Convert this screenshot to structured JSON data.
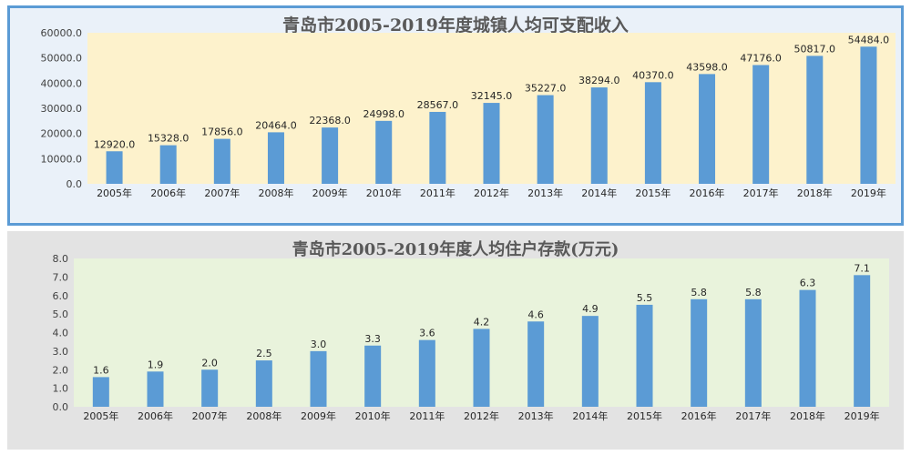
{
  "chart_data": [
    {
      "type": "bar",
      "title": "青岛市2005-2019年度城镇人均可支配收入",
      "categories": [
        "2005年",
        "2006年",
        "2007年",
        "2008年",
        "2009年",
        "2010年",
        "2011年",
        "2012年",
        "2013年",
        "2014年",
        "2015年",
        "2016年",
        "2017年",
        "2018年",
        "2019年"
      ],
      "values": [
        12920.0,
        15328.0,
        17856.0,
        20464.0,
        22368.0,
        24998.0,
        28567.0,
        32145.0,
        35227.0,
        38294.0,
        40370.0,
        43598.0,
        47176.0,
        50817.0,
        54484.0
      ],
      "data_labels": [
        "12920.0",
        "15328.0",
        "17856.0",
        "20464.0",
        "22368.0",
        "24998.0",
        "28567.0",
        "32145.0",
        "35227.0",
        "38294.0",
        "40370.0",
        "43598.0",
        "47176.0",
        "50817.0",
        "54484.0"
      ],
      "y_ticks": [
        "0.0",
        "10000.0",
        "20000.0",
        "30000.0",
        "40000.0",
        "50000.0",
        "60000.0"
      ],
      "ylim": [
        0,
        60000
      ],
      "bar_color": "#5b9bd5",
      "plot_background": "#fdf2cc",
      "grid": false,
      "legend": "none"
    },
    {
      "type": "bar",
      "title": "青岛市2005-2019年度人均住户存款(万元)",
      "categories": [
        "2005年",
        "2006年",
        "2007年",
        "2008年",
        "2009年",
        "2010年",
        "2011年",
        "2012年",
        "2013年",
        "2014年",
        "2015年",
        "2016年",
        "2017年",
        "2018年",
        "2019年"
      ],
      "values": [
        1.6,
        1.9,
        2.0,
        2.5,
        3.0,
        3.3,
        3.6,
        4.2,
        4.6,
        4.9,
        5.5,
        5.8,
        5.8,
        6.3,
        7.1
      ],
      "data_labels": [
        "1.6",
        "1.9",
        "2.0",
        "2.5",
        "3.0",
        "3.3",
        "3.6",
        "4.2",
        "4.6",
        "4.9",
        "5.5",
        "5.8",
        "5.8",
        "6.3",
        "7.1"
      ],
      "y_ticks": [
        "0.0",
        "1.0",
        "2.0",
        "3.0",
        "4.0",
        "5.0",
        "6.0",
        "7.0",
        "8.0"
      ],
      "ylim": [
        0,
        8
      ],
      "bar_color": "#5b9bd5",
      "plot_background": "#e9f3dc",
      "grid": false,
      "legend": "none"
    }
  ]
}
